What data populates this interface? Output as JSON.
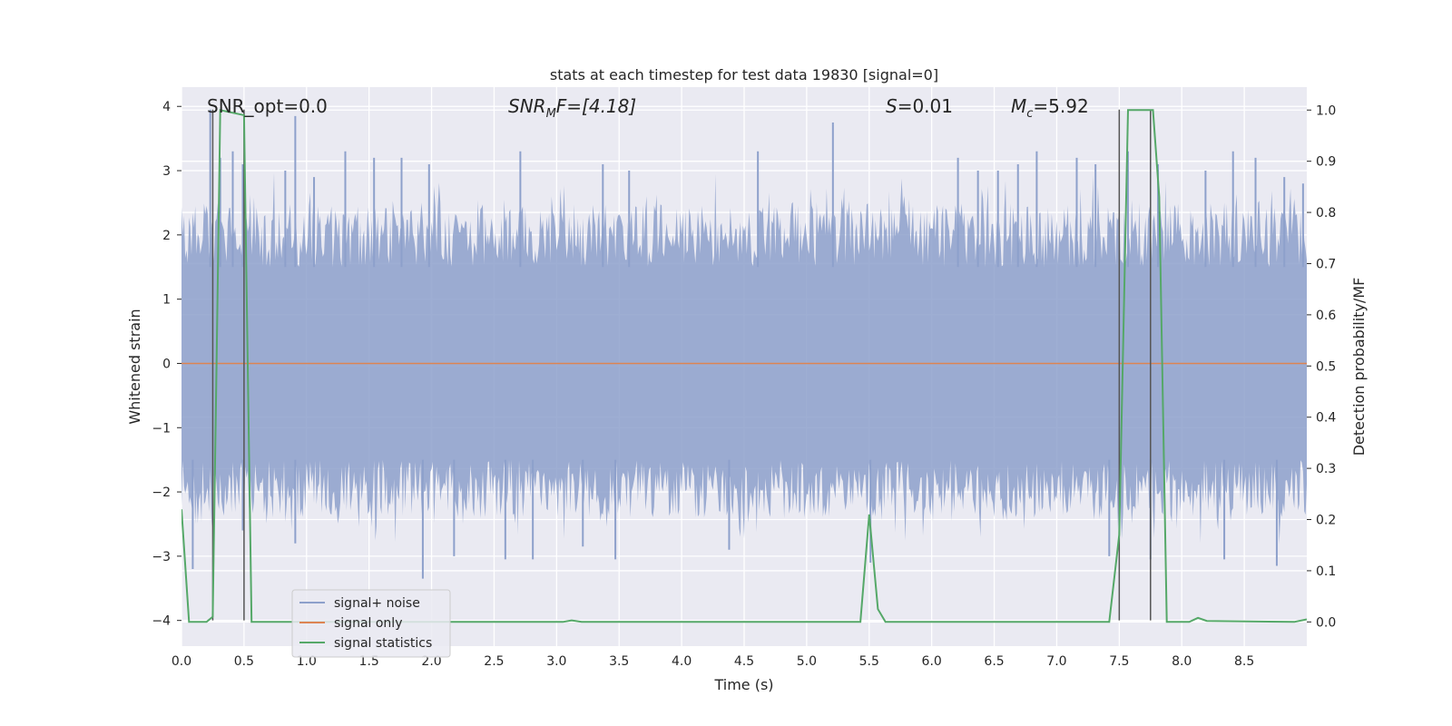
{
  "chart_data": {
    "type": "line",
    "title": "stats at each timestep for test data 19830 [signal=0]",
    "xlabel": "Time (s)",
    "ylabel_left": "Whitened strain",
    "ylabel_right": "Detection probability/MF",
    "xlim": [
      0.0,
      9.0
    ],
    "ylim_left": [
      -4.4,
      4.3
    ],
    "ylim_right": [
      -0.0473,
      1.0448
    ],
    "x_ticks": [
      "0.0",
      "0.5",
      "1.0",
      "1.5",
      "2.0",
      "2.5",
      "3.0",
      "3.5",
      "4.0",
      "4.5",
      "5.0",
      "5.5",
      "6.0",
      "6.5",
      "7.0",
      "7.5",
      "8.0",
      "8.5"
    ],
    "y_ticks_left": [
      "4",
      "3",
      "2",
      "1",
      "0",
      "−1",
      "−2",
      "−3",
      "−4"
    ],
    "y_ticks_right": [
      "1.0",
      "0.9",
      "0.8",
      "0.7",
      "0.6",
      "0.5",
      "0.4",
      "0.3",
      "0.2",
      "0.1",
      "0.0"
    ],
    "grid": true,
    "legend_position": "lower left",
    "annotations": {
      "snr_opt": "SNR_opt=0.0",
      "snr_mf_sym": "SNR",
      "snr_mf_sub": "M",
      "snr_mf_rest": "F=[4.18]",
      "s_sym": "S",
      "s_rest": "=0.01",
      "mc_sym": "M",
      "mc_sub": "c",
      "mc_rest": "=5.92"
    },
    "series": [
      {
        "name": "signal+ noise",
        "color": "#8da0cb",
        "axis": "left",
        "description_values": "whitened strain noise, peaks approx ±3.9",
        "peaks": [
          [
            0.23,
            3.95
          ],
          [
            0.31,
            3.2
          ],
          [
            0.41,
            3.3
          ],
          [
            0.49,
            3.1
          ],
          [
            0.91,
            3.85
          ],
          [
            0.83,
            3.0
          ],
          [
            1.06,
            2.9
          ],
          [
            1.31,
            3.3
          ],
          [
            1.54,
            3.2
          ],
          [
            1.76,
            3.2
          ],
          [
            1.98,
            3.1
          ],
          [
            2.71,
            3.3
          ],
          [
            3.37,
            3.1
          ],
          [
            3.58,
            3.0
          ],
          [
            4.61,
            3.3
          ],
          [
            5.21,
            3.75
          ],
          [
            6.21,
            3.2
          ],
          [
            6.37,
            3.0
          ],
          [
            6.53,
            3.0
          ],
          [
            6.69,
            3.1
          ],
          [
            6.84,
            3.3
          ],
          [
            7.16,
            3.2
          ],
          [
            7.31,
            3.1
          ],
          [
            7.57,
            3.3
          ],
          [
            7.81,
            3.1
          ],
          [
            8.19,
            3.0
          ],
          [
            8.41,
            3.3
          ],
          [
            8.59,
            3.2
          ],
          [
            8.82,
            2.9
          ],
          [
            8.97,
            2.8
          ]
        ],
        "troughs": [
          [
            0.09,
            -3.2
          ],
          [
            0.49,
            -2.6
          ],
          [
            0.91,
            -2.8
          ],
          [
            1.93,
            -3.35
          ],
          [
            2.18,
            -3.0
          ],
          [
            2.59,
            -3.05
          ],
          [
            2.81,
            -3.05
          ],
          [
            3.21,
            -2.85
          ],
          [
            3.47,
            -3.05
          ],
          [
            4.38,
            -2.9
          ],
          [
            5.51,
            -3.1
          ],
          [
            7.42,
            -3.0
          ],
          [
            7.75,
            -3.05
          ],
          [
            8.34,
            -3.05
          ],
          [
            8.76,
            -3.15
          ]
        ]
      },
      {
        "name": "signal only",
        "color": "#dd8452",
        "axis": "left",
        "x": [
          0.0,
          9.0
        ],
        "y": [
          0.0,
          0.0
        ]
      },
      {
        "name": "signal statistics",
        "color": "#55a868",
        "axis": "right",
        "x": [
          0.0,
          0.06,
          0.2,
          0.25,
          0.28,
          0.31,
          0.5,
          0.56,
          0.6,
          3.05,
          3.12,
          3.2,
          5.43,
          5.5,
          5.57,
          5.63,
          7.42,
          7.5,
          7.57,
          7.77,
          7.82,
          7.88,
          8.06,
          8.13,
          8.2,
          8.9,
          9.0
        ],
        "y": [
          0.22,
          0.0,
          0.0,
          0.01,
          0.5,
          1.0,
          0.99,
          0.0,
          0.0,
          0.0,
          0.003,
          0.0,
          0.0,
          0.21,
          0.025,
          0.0,
          0.0,
          0.17,
          1.0,
          1.0,
          0.83,
          0.0,
          0.0,
          0.008,
          0.002,
          0.0,
          0.005
        ]
      }
    ],
    "vertical_lines": [
      0.25,
      0.5,
      7.5,
      7.75
    ],
    "legend": [
      "signal+ noise",
      "signal only",
      "signal statistics"
    ]
  }
}
